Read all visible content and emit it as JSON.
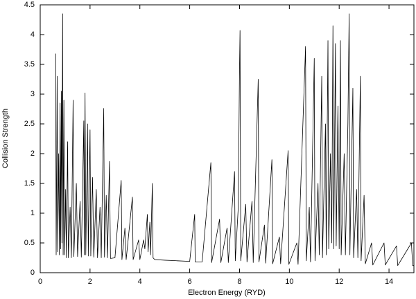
{
  "chart_data": {
    "type": "line",
    "xlabel": "Electron Energy (RYD)",
    "ylabel": "Collision Strength",
    "xlim": [
      0,
      15
    ],
    "ylim": [
      0,
      4.5
    ],
    "xticks": [
      0,
      2,
      4,
      6,
      8,
      10,
      12,
      14
    ],
    "yticks": [
      0,
      0.5,
      1,
      1.5,
      2,
      2.5,
      3,
      3.5,
      4,
      4.5
    ],
    "grid": false,
    "color": "#000000",
    "x": [
      0.62,
      0.64,
      0.68,
      0.7,
      0.74,
      0.77,
      0.8,
      0.82,
      0.85,
      0.87,
      0.9,
      0.92,
      0.95,
      0.98,
      1.02,
      1.05,
      1.1,
      1.13,
      1.2,
      1.25,
      1.32,
      1.35,
      1.45,
      1.5,
      1.6,
      1.65,
      1.75,
      1.77,
      1.8,
      1.83,
      1.9,
      1.93,
      2.0,
      2.03,
      2.1,
      2.15,
      2.25,
      2.3,
      2.4,
      2.45,
      2.55,
      2.58,
      2.65,
      2.7,
      2.78,
      2.82,
      3.0,
      3.25,
      3.28,
      3.4,
      3.45,
      3.7,
      3.73,
      3.95,
      4.0,
      4.15,
      4.2,
      4.3,
      4.33,
      4.4,
      4.43,
      4.5,
      4.53,
      4.6,
      5.0,
      5.5,
      6.0,
      6.2,
      6.22,
      6.5,
      6.85,
      6.88,
      7.2,
      7.25,
      7.5,
      7.55,
      7.8,
      7.83,
      7.95,
      8.0,
      8.02,
      8.05,
      8.25,
      8.3,
      8.5,
      8.55,
      8.75,
      8.78,
      9.0,
      9.05,
      9.3,
      9.33,
      9.6,
      9.65,
      9.95,
      9.98,
      10.3,
      10.35,
      10.65,
      10.68,
      10.8,
      10.85,
      11.0,
      11.03,
      11.15,
      11.2,
      11.3,
      11.33,
      11.45,
      11.48,
      11.55,
      11.58,
      11.65,
      11.7,
      11.75,
      11.78,
      11.85,
      11.88,
      11.95,
      12.0,
      12.05,
      12.08,
      12.2,
      12.25,
      12.35,
      12.4,
      12.43,
      12.55,
      12.58,
      12.7,
      12.75,
      12.85,
      12.88,
      13.0,
      13.05,
      13.3,
      13.35,
      13.8,
      13.85,
      14.3,
      14.35,
      14.9,
      14.95,
      15
    ],
    "values": [
      3.68,
      0.3,
      3.3,
      0.35,
      2.0,
      0.3,
      2.85,
      0.4,
      3.05,
      0.5,
      4.35,
      0.3,
      2.9,
      0.3,
      1.4,
      0.25,
      2.2,
      0.25,
      1.1,
      0.25,
      2.9,
      0.27,
      1.5,
      0.27,
      1.2,
      0.26,
      2.55,
      0.3,
      3.02,
      0.3,
      2.5,
      0.28,
      2.4,
      0.28,
      1.6,
      0.26,
      1.4,
      0.25,
      1.1,
      0.25,
      2.76,
      0.26,
      1.3,
      0.25,
      1.87,
      0.24,
      0.25,
      1.55,
      0.22,
      0.75,
      0.22,
      1.27,
      0.22,
      0.55,
      0.22,
      0.55,
      0.4,
      0.98,
      0.35,
      0.85,
      0.3,
      1.5,
      0.25,
      0.22,
      0.21,
      0.2,
      0.19,
      0.98,
      0.18,
      0.18,
      1.85,
      0.17,
      0.9,
      0.17,
      0.75,
      0.17,
      1.7,
      0.2,
      1.1,
      3.45,
      4.07,
      0.2,
      1.15,
      0.18,
      1.2,
      0.17,
      3.25,
      0.18,
      0.8,
      0.16,
      1.9,
      0.15,
      0.6,
      0.15,
      2.05,
      0.14,
      0.5,
      0.14,
      3.8,
      0.2,
      1.1,
      0.18,
      3.6,
      0.2,
      1.5,
      0.3,
      3.3,
      0.25,
      2.5,
      0.3,
      3.9,
      0.4,
      2.0,
      0.5,
      4.15,
      0.4,
      3.85,
      0.45,
      2.8,
      0.4,
      3.9,
      0.3,
      2.0,
      0.3,
      2.5,
      4.35,
      0.3,
      3.1,
      0.25,
      1.4,
      0.25,
      3.3,
      0.2,
      1.3,
      0.15,
      0.5,
      0.13,
      0.5,
      0.13,
      0.45,
      0.12,
      0.5,
      0.12,
      0.12
    ]
  }
}
